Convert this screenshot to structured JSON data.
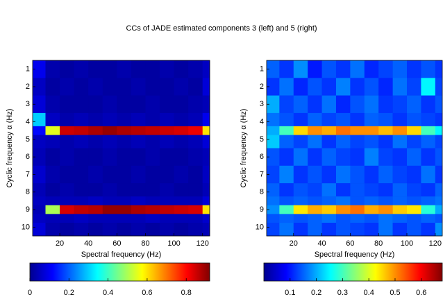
{
  "title": "CCs of JADE estimated components 3 (left) and 5 (right)",
  "chart_data": [
    {
      "type": "heatmap",
      "xlabel": "Spectral frequency (Hz)",
      "ylabel": "Cyclic frequency α (Hz)",
      "x": [
        5,
        15,
        25,
        35,
        45,
        55,
        65,
        75,
        85,
        95,
        105,
        115,
        125
      ],
      "y": [
        1,
        2,
        3,
        4,
        4.5,
        5,
        6,
        7,
        8,
        8.5,
        9,
        9.5,
        10
      ],
      "z": [
        [
          0.1,
          0.04,
          0.03,
          0.04,
          0.03,
          0.03,
          0.04,
          0.03,
          0.03,
          0.04,
          0.03,
          0.04,
          0.06
        ],
        [
          0.06,
          0.03,
          0.04,
          0.03,
          0.04,
          0.03,
          0.03,
          0.04,
          0.03,
          0.03,
          0.04,
          0.03,
          0.08
        ],
        [
          0.08,
          0.04,
          0.03,
          0.03,
          0.03,
          0.04,
          0.03,
          0.03,
          0.04,
          0.03,
          0.03,
          0.04,
          0.05
        ],
        [
          0.3,
          0.06,
          0.04,
          0.05,
          0.04,
          0.05,
          0.04,
          0.05,
          0.04,
          0.05,
          0.04,
          0.05,
          0.1
        ],
        [
          0.12,
          0.55,
          0.85,
          0.86,
          0.88,
          0.9,
          0.88,
          0.87,
          0.86,
          0.85,
          0.84,
          0.82,
          0.6
        ],
        [
          0.06,
          0.05,
          0.04,
          0.05,
          0.04,
          0.05,
          0.04,
          0.05,
          0.04,
          0.05,
          0.04,
          0.05,
          0.08
        ],
        [
          0.05,
          0.03,
          0.04,
          0.03,
          0.03,
          0.04,
          0.03,
          0.03,
          0.04,
          0.03,
          0.03,
          0.04,
          0.05
        ],
        [
          0.07,
          0.04,
          0.03,
          0.03,
          0.04,
          0.03,
          0.03,
          0.04,
          0.03,
          0.03,
          0.04,
          0.03,
          0.06
        ],
        [
          0.05,
          0.03,
          0.04,
          0.03,
          0.03,
          0.04,
          0.03,
          0.03,
          0.03,
          0.04,
          0.03,
          0.03,
          0.05
        ],
        [
          0.06,
          0.05,
          0.05,
          0.05,
          0.06,
          0.05,
          0.05,
          0.06,
          0.05,
          0.05,
          0.05,
          0.05,
          0.08
        ],
        [
          0.05,
          0.5,
          0.84,
          0.86,
          0.87,
          0.9,
          0.9,
          0.88,
          0.87,
          0.86,
          0.85,
          0.84,
          0.6
        ],
        [
          0.06,
          0.05,
          0.05,
          0.06,
          0.05,
          0.05,
          0.05,
          0.05,
          0.06,
          0.05,
          0.05,
          0.05,
          0.07
        ],
        [
          0.08,
          0.04,
          0.03,
          0.04,
          0.03,
          0.04,
          0.03,
          0.04,
          0.03,
          0.04,
          0.03,
          0.04,
          0.05
        ]
      ],
      "xlim": [
        1,
        125
      ],
      "ylim": [
        0.5,
        10.5
      ],
      "xticks": [
        20,
        40,
        60,
        80,
        100,
        120
      ],
      "yticks": [
        1,
        2,
        3,
        4,
        5,
        6,
        7,
        8,
        9,
        10
      ],
      "clim": [
        0,
        0.92
      ],
      "cticks": [
        0,
        0.2,
        0.4,
        0.6,
        0.8
      ]
    },
    {
      "type": "heatmap",
      "xlabel": "Spectral frequency (Hz)",
      "ylabel": "Cyclic frequency α (Hz)",
      "x": [
        5,
        15,
        25,
        35,
        45,
        55,
        65,
        75,
        85,
        95,
        105,
        115,
        125
      ],
      "y": [
        1,
        2,
        3,
        4,
        4.5,
        5,
        6,
        7,
        8,
        8.5,
        9,
        9.5,
        10
      ],
      "z": [
        [
          0.15,
          0.12,
          0.18,
          0.1,
          0.14,
          0.12,
          0.16,
          0.11,
          0.13,
          0.15,
          0.12,
          0.14,
          0.12
        ],
        [
          0.12,
          0.16,
          0.11,
          0.14,
          0.12,
          0.17,
          0.12,
          0.14,
          0.11,
          0.16,
          0.13,
          0.25,
          0.13
        ],
        [
          0.2,
          0.13,
          0.15,
          0.12,
          0.16,
          0.11,
          0.14,
          0.16,
          0.12,
          0.13,
          0.15,
          0.12,
          0.14
        ],
        [
          0.16,
          0.14,
          0.12,
          0.15,
          0.13,
          0.14,
          0.12,
          0.15,
          0.14,
          0.12,
          0.14,
          0.13,
          0.12
        ],
        [
          0.2,
          0.3,
          0.45,
          0.5,
          0.48,
          0.52,
          0.5,
          0.5,
          0.47,
          0.5,
          0.45,
          0.3,
          0.25
        ],
        [
          0.22,
          0.15,
          0.13,
          0.16,
          0.12,
          0.15,
          0.13,
          0.14,
          0.12,
          0.16,
          0.13,
          0.15,
          0.13
        ],
        [
          0.14,
          0.12,
          0.16,
          0.12,
          0.15,
          0.13,
          0.12,
          0.17,
          0.13,
          0.12,
          0.15,
          0.12,
          0.14
        ],
        [
          0.13,
          0.17,
          0.12,
          0.14,
          0.12,
          0.16,
          0.14,
          0.12,
          0.15,
          0.13,
          0.12,
          0.16,
          0.12
        ],
        [
          0.15,
          0.12,
          0.14,
          0.13,
          0.16,
          0.12,
          0.14,
          0.13,
          0.12,
          0.15,
          0.13,
          0.12,
          0.15
        ],
        [
          0.16,
          0.14,
          0.15,
          0.14,
          0.15,
          0.16,
          0.14,
          0.15,
          0.14,
          0.15,
          0.14,
          0.15,
          0.16
        ],
        [
          0.18,
          0.3,
          0.44,
          0.48,
          0.46,
          0.5,
          0.52,
          0.48,
          0.5,
          0.46,
          0.44,
          0.28,
          0.2
        ],
        [
          0.14,
          0.15,
          0.14,
          0.15,
          0.16,
          0.14,
          0.15,
          0.14,
          0.16,
          0.15,
          0.14,
          0.15,
          0.14
        ],
        [
          0.13,
          0.16,
          0.12,
          0.15,
          0.12,
          0.14,
          0.13,
          0.12,
          0.16,
          0.12,
          0.14,
          0.12,
          0.18
        ]
      ],
      "xlim": [
        1,
        125
      ],
      "ylim": [
        0.5,
        10.5
      ],
      "xticks": [
        20,
        40,
        60,
        80,
        100,
        120
      ],
      "yticks": [
        1,
        2,
        3,
        4,
        5,
        6,
        7,
        8,
        9,
        10
      ],
      "clim": [
        0,
        0.68
      ],
      "cticks": [
        0.1,
        0.2,
        0.3,
        0.4,
        0.5,
        0.6
      ]
    }
  ]
}
